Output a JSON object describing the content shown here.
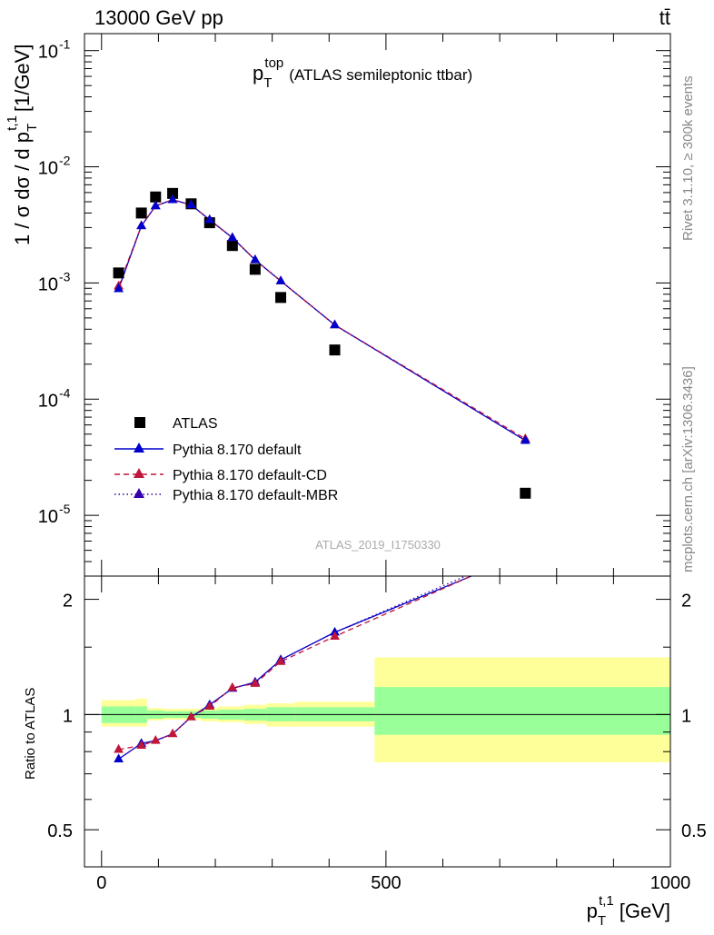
{
  "header": {
    "energy_label": "13000 GeV pp",
    "process_label": "tt̄"
  },
  "side_labels": {
    "rivet": "Rivet 3.1.10, ≥ 300k events",
    "mcplots": "mcplots.cern.ch [arXiv:1306.3436]"
  },
  "chart_data": [
    {
      "type": "scatter",
      "panel": "main",
      "title_main": "p",
      "title_sub": "T",
      "title_sup": "top",
      "title_rest": "(ATLAS semileptonic ttbar)",
      "ylabel_text": "1 / σ dσ / d p",
      "ylabel_sub": "T",
      "ylabel_sup": "t,1",
      "ylabel_unit": "[1/GeV]",
      "yscale": "log",
      "ylim": [
        3e-06,
        0.14
      ],
      "xlim": [
        -30,
        1000
      ],
      "ytick_labels": [
        "10",
        "10",
        "10",
        "10",
        "10"
      ],
      "ytick_exponents": [
        "-1",
        "-2",
        "-3",
        "-4",
        "-5"
      ],
      "ytick_values": [
        0.1,
        0.01,
        0.001,
        0.0001,
        1e-05
      ],
      "watermark": "ATLAS_2019_I1750330",
      "legend_position": "bottom-left",
      "series": [
        {
          "name": "ATLAS",
          "color": "#000000",
          "marker": "square",
          "x": [
            30,
            70,
            95,
            125,
            157.5,
            190,
            230,
            270,
            315,
            410,
            745
          ],
          "y": [
            0.00122,
            0.004,
            0.0055,
            0.0059,
            0.0048,
            0.0033,
            0.0021,
            0.00131,
            0.00075,
            0.000265,
            1.55e-05
          ]
        },
        {
          "name": "Pythia 8.170 default",
          "color": "#0000cc",
          "marker": "triangle",
          "line": "solid",
          "x": [
            30,
            70,
            95,
            125,
            157.5,
            190,
            230,
            270,
            315,
            410,
            745
          ],
          "y": [
            0.00089,
            0.0031,
            0.0046,
            0.0052,
            0.0047,
            0.0035,
            0.00245,
            0.00158,
            0.00104,
            0.000435,
            4.4e-05
          ]
        },
        {
          "name": "Pythia 8.170 default-CD",
          "color": "#c0163a",
          "marker": "triangle",
          "line": "dashed",
          "x": [
            30,
            70,
            95,
            125,
            157.5,
            190,
            230,
            270,
            315,
            410,
            745
          ],
          "y": [
            0.00094,
            0.0031,
            0.0046,
            0.0052,
            0.0047,
            0.0035,
            0.00245,
            0.00158,
            0.00104,
            0.000435,
            4.55e-05
          ]
        },
        {
          "name": "Pythia 8.170 default-MBR",
          "color": "#3300aa",
          "marker": "triangle",
          "line": "dotted",
          "x": [
            30,
            70,
            95,
            125,
            157.5,
            190,
            230,
            270,
            315,
            410,
            745
          ],
          "y": [
            0.00089,
            0.0031,
            0.0046,
            0.0052,
            0.0047,
            0.0035,
            0.00245,
            0.00158,
            0.00104,
            0.000435,
            4.4e-05
          ]
        }
      ]
    },
    {
      "type": "line",
      "panel": "ratio",
      "ylabel": "Ratio to ATLAS",
      "yscale": "log",
      "ylim": [
        0.4,
        2.3
      ],
      "xlim": [
        -30,
        1000
      ],
      "xlabel_main": "p",
      "xlabel_sub": "T",
      "xlabel_sup": "t,1",
      "xlabel_unit": "[GeV]",
      "xtick_labels": [
        "0",
        "500",
        "1000"
      ],
      "xtick_values": [
        0,
        500,
        1000
      ],
      "ytick_labels": [
        "2",
        "1",
        "0.5"
      ],
      "ytick_values": [
        2,
        1,
        0.5
      ],
      "bands": [
        {
          "x0": 0,
          "x1": 60,
          "inner": [
            0.95,
            1.05
          ],
          "outer": [
            0.93,
            1.09
          ]
        },
        {
          "x0": 60,
          "x1": 80,
          "inner": [
            0.95,
            1.05
          ],
          "outer": [
            0.93,
            1.1
          ]
        },
        {
          "x0": 80,
          "x1": 110,
          "inner": [
            0.975,
            1.025
          ],
          "outer": [
            0.965,
            1.04
          ]
        },
        {
          "x0": 110,
          "x1": 140,
          "inner": [
            0.98,
            1.02
          ],
          "outer": [
            0.97,
            1.035
          ]
        },
        {
          "x0": 140,
          "x1": 175,
          "inner": [
            0.98,
            1.02
          ],
          "outer": [
            0.97,
            1.035
          ]
        },
        {
          "x0": 175,
          "x1": 205,
          "inner": [
            0.975,
            1.025
          ],
          "outer": [
            0.96,
            1.04
          ]
        },
        {
          "x0": 205,
          "x1": 250,
          "inner": [
            0.97,
            1.03
          ],
          "outer": [
            0.955,
            1.05
          ]
        },
        {
          "x0": 250,
          "x1": 290,
          "inner": [
            0.965,
            1.035
          ],
          "outer": [
            0.945,
            1.06
          ]
        },
        {
          "x0": 290,
          "x1": 340,
          "inner": [
            0.96,
            1.045
          ],
          "outer": [
            0.93,
            1.07
          ]
        },
        {
          "x0": 340,
          "x1": 480,
          "inner": [
            0.96,
            1.045
          ],
          "outer": [
            0.93,
            1.08
          ]
        },
        {
          "x0": 480,
          "x1": 1000,
          "inner": [
            0.885,
            1.18
          ],
          "outer": [
            0.75,
            1.41
          ]
        }
      ],
      "series": [
        {
          "name": "Pythia 8.170 default",
          "color": "#0000cc",
          "line": "solid",
          "x": [
            30,
            70,
            95,
            125,
            157.5,
            190,
            230,
            270,
            315,
            410,
            650
          ],
          "y": [
            0.765,
            0.84,
            0.855,
            0.89,
            0.985,
            1.06,
            1.17,
            1.215,
            1.39,
            1.64,
            2.3
          ]
        },
        {
          "name": "Pythia 8.170 default-CD",
          "color": "#c0163a",
          "line": "dashed",
          "x": [
            30,
            70,
            95,
            125,
            157.5,
            190,
            230,
            270,
            315,
            410,
            650
          ],
          "y": [
            0.81,
            0.83,
            0.855,
            0.89,
            0.985,
            1.05,
            1.175,
            1.205,
            1.375,
            1.6,
            2.3
          ]
        },
        {
          "name": "Pythia 8.170 default-MBR",
          "color": "#3300aa",
          "line": "dotted",
          "x": [
            30,
            70,
            95,
            125,
            157.5,
            190,
            230,
            270,
            315,
            410,
            640
          ],
          "y": [
            0.765,
            0.84,
            0.855,
            0.89,
            0.985,
            1.06,
            1.17,
            1.215,
            1.39,
            1.64,
            2.3
          ]
        }
      ],
      "marker_points": [
        {
          "x": 30,
          "y": 0.765,
          "color": "#0000cc"
        },
        {
          "x": 30,
          "y": 0.81,
          "color": "#c0163a"
        },
        {
          "x": 70,
          "y": 0.84,
          "color": "#0000cc"
        },
        {
          "x": 70,
          "y": 0.83,
          "color": "#c0163a"
        },
        {
          "x": 95,
          "y": 0.855,
          "color": "#c0163a"
        },
        {
          "x": 125,
          "y": 0.89,
          "color": "#c0163a"
        },
        {
          "x": 157.5,
          "y": 0.985,
          "color": "#c0163a"
        },
        {
          "x": 190,
          "y": 1.06,
          "color": "#0000cc"
        },
        {
          "x": 190,
          "y": 1.05,
          "color": "#c0163a"
        },
        {
          "x": 230,
          "y": 1.17,
          "color": "#0000cc"
        },
        {
          "x": 230,
          "y": 1.175,
          "color": "#c0163a"
        },
        {
          "x": 270,
          "y": 1.215,
          "color": "#0000cc"
        },
        {
          "x": 270,
          "y": 1.205,
          "color": "#c0163a"
        },
        {
          "x": 315,
          "y": 1.39,
          "color": "#0000cc"
        },
        {
          "x": 315,
          "y": 1.375,
          "color": "#c0163a"
        },
        {
          "x": 410,
          "y": 1.64,
          "color": "#0000cc"
        },
        {
          "x": 410,
          "y": 1.6,
          "color": "#c0163a"
        }
      ]
    }
  ]
}
